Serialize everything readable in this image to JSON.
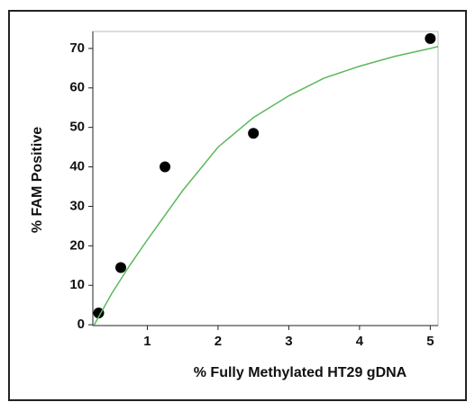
{
  "chart_data": {
    "type": "scatter",
    "x_label": "% Fully Methylated HT29 gDNA",
    "y_label": "% FAM Positive",
    "xlim": [
      0.23,
      5.11
    ],
    "ylim": [
      -0.2,
      74.3
    ],
    "xticks": [
      1,
      2,
      3,
      4,
      5
    ],
    "yticks": [
      0,
      10,
      20,
      30,
      40,
      50,
      60,
      70
    ],
    "series": [
      {
        "type": "scatter",
        "color": "#000000",
        "x": [
          0.3125,
          0.625,
          1.25,
          2.5,
          5
        ],
        "values": [
          3,
          14.5,
          40,
          48.5,
          72.5
        ]
      },
      {
        "type": "line",
        "color": "#5cb85c",
        "x": [
          0.25,
          0.5,
          0.75,
          1,
          1.5,
          2,
          2.5,
          3,
          3.5,
          4,
          4.5,
          5,
          5.11
        ],
        "values": [
          0,
          8,
          15,
          21.5,
          34,
          45,
          52.5,
          58,
          62.5,
          65.5,
          68,
          70,
          70.5
        ]
      }
    ]
  }
}
